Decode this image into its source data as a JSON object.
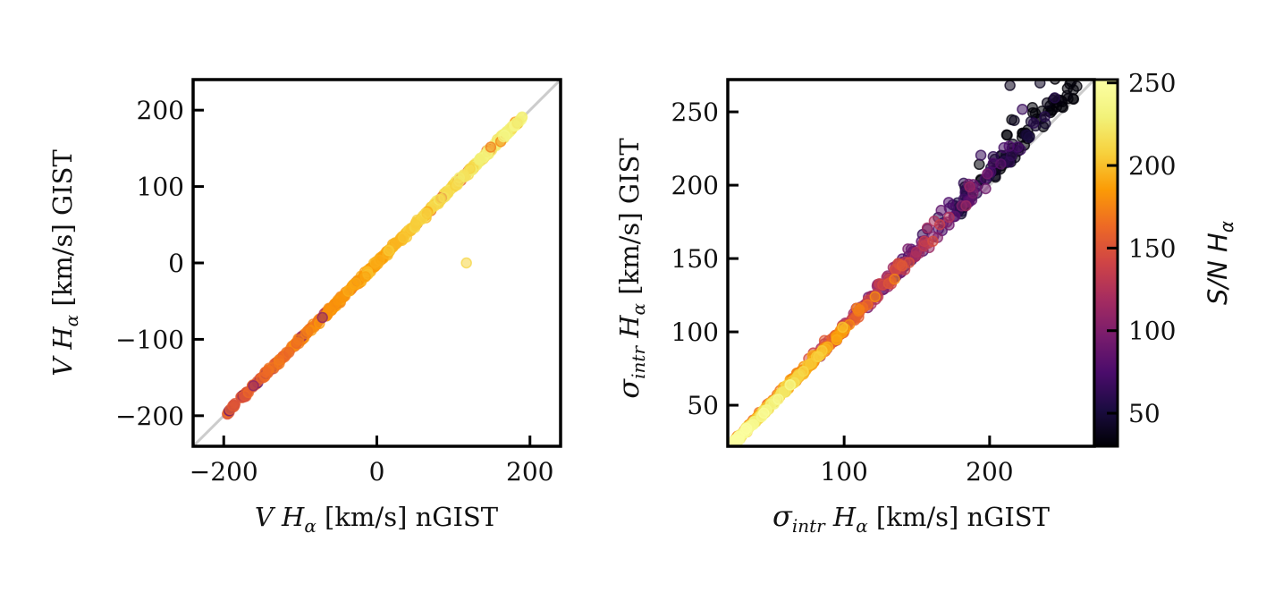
{
  "chart_data": [
    {
      "type": "scatter",
      "panel": "left",
      "xlabel": "V Hα [km/s] nGIST",
      "ylabel": "V Hα [km/s] GIST",
      "xlim": [
        -240,
        240
      ],
      "ylim": [
        -240,
        240
      ],
      "xticks": [
        -200,
        0,
        200
      ],
      "yticks": [
        -200,
        -100,
        0,
        100,
        200
      ],
      "xtick_labels": [
        "−200",
        "0",
        "200"
      ],
      "ytick_labels": [
        "−200",
        "−100",
        "0",
        "100",
        "200"
      ],
      "reference_line": "one-to-one (y = x)",
      "color_by": "S/N Hα",
      "points": {
        "description": "points lie tightly along y = x from about −200 to 190 km/s",
        "x_range": [
          -198,
          190
        ],
        "outliers": [
          {
            "x": 117,
            "y": 0
          }
        ]
      }
    },
    {
      "type": "scatter",
      "panel": "right",
      "xlabel": "σintr Hα [km/s] nGIST",
      "ylabel": "σintr Hα [km/s] GIST",
      "xlim": [
        20,
        272
      ],
      "ylim": [
        22,
        272
      ],
      "xticks": [
        100,
        200
      ],
      "yticks": [
        50,
        100,
        150,
        200,
        250
      ],
      "xtick_labels": [
        "100",
        "200"
      ],
      "ytick_labels": [
        "50",
        "100",
        "150",
        "200",
        "250"
      ],
      "reference_line": "one-to-one (y = x)",
      "color_by": "S/N Hα",
      "points": {
        "description": "points follow y ≈ x at high S/N; low S/N points scatter above the line (GIST > nGIST)",
        "x_range": [
          25,
          262
        ],
        "outliers": [
          {
            "x": 214,
            "y": 268
          }
        ]
      }
    }
  ],
  "colorbar": {
    "label": "S/N Hα",
    "colormap": "inferno",
    "range": [
      30,
      252
    ],
    "ticks": [
      50,
      100,
      150,
      200,
      250
    ],
    "tick_labels": [
      "50",
      "100",
      "150",
      "200",
      "250"
    ]
  },
  "labels": {
    "left_x": {
      "main": "V ",
      "h": "H",
      "sub": "α",
      "rest": " [km/s] nGIST"
    },
    "left_y": {
      "main": "V ",
      "h": "H",
      "sub": "α",
      "rest": " [km/s] GIST"
    },
    "right_x": {
      "sig": "σ",
      "sigsub": "intr",
      "h": " H",
      "sub": "α",
      "rest": " [km/s] nGIST"
    },
    "right_y": {
      "sig": "σ",
      "sigsub": "intr",
      "h": " H",
      "sub": "α",
      "rest": " [km/s] GIST"
    },
    "cbar": {
      "main": "S/N H",
      "sub": "α"
    }
  },
  "colors": {
    "reference_line": "#cccccc",
    "axes": "#000000"
  }
}
